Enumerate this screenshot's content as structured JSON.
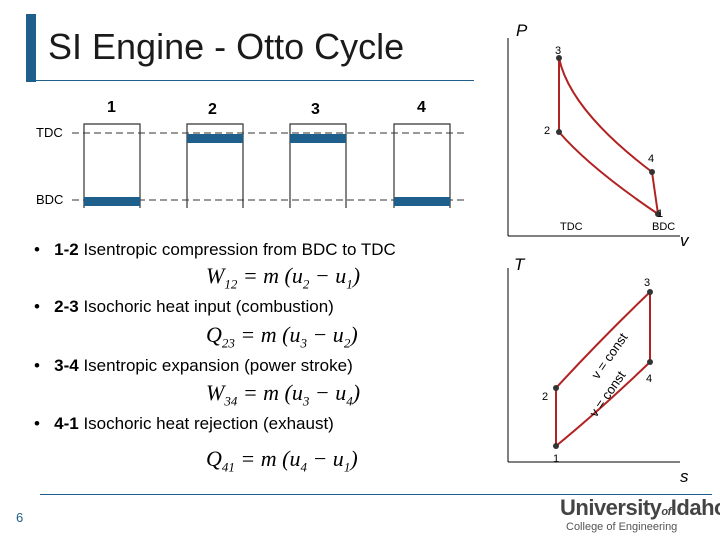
{
  "slide": {
    "title": "SI Engine - Otto Cycle",
    "page_number": "6"
  },
  "pistons": {
    "positions": [
      "1",
      "2",
      "3",
      "4"
    ],
    "tdc_label": "TDC",
    "bdc_label": "BDC"
  },
  "processes": [
    {
      "bullet": "•",
      "states": "1-2",
      "desc": "Isentropic compression from BDC to TDC",
      "eq_lhs": "W",
      "eq_lhs_sub": "12",
      "eq_mid": " = m (u",
      "eq_a_sub": "2",
      "eq_minus": " − u",
      "eq_b_sub": "1",
      "eq_end": ")"
    },
    {
      "bullet": "•",
      "states": "2-3",
      "desc": "Isochoric heat input (combustion)",
      "eq_lhs": "Q",
      "eq_lhs_sub": "23",
      "eq_mid": " = m (u",
      "eq_a_sub": "3",
      "eq_minus": " − u",
      "eq_b_sub": "2",
      "eq_end": ")"
    },
    {
      "bullet": "•",
      "states": "3-4",
      "desc": "Isentropic expansion (power stroke)",
      "eq_lhs": "W",
      "eq_lhs_sub": "34",
      "eq_mid": " = m (u",
      "eq_a_sub": "3",
      "eq_minus": " − u",
      "eq_b_sub": "4",
      "eq_end": ")"
    },
    {
      "bullet": "•",
      "states": "4-1",
      "desc": "Isochoric heat rejection (exhaust)",
      "eq_lhs": "Q",
      "eq_lhs_sub": "41",
      "eq_mid": " = m (u",
      "eq_a_sub": "4",
      "eq_minus": " − u",
      "eq_b_sub": "1",
      "eq_end": ")"
    }
  ],
  "pv_diagram": {
    "y_axis": "P",
    "x_axis": "v",
    "state_labels": [
      "1",
      "2",
      "3",
      "4"
    ],
    "tdc_label": "TDC",
    "bdc_label": "BDC"
  },
  "ts_diagram": {
    "y_axis": "T",
    "x_axis": "s",
    "state_labels": [
      "1",
      "2",
      "3",
      "4"
    ],
    "const_label_upper": "v = const",
    "const_label_lower": "v = const"
  },
  "logo": {
    "main_a": "University",
    "of": "of",
    "main_b": "Idaho",
    "sub": "College of Engineering"
  },
  "colors": {
    "accent": "#1f5f8b",
    "cycle": "#b22222",
    "piston": "#1f5f8b"
  }
}
